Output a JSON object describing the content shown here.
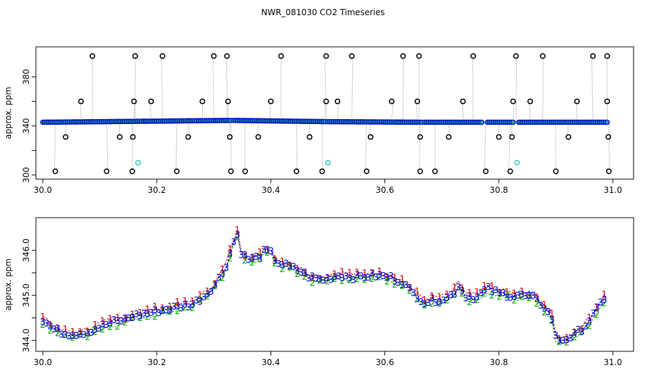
{
  "title": "NWR_081030  CO2 Timeseries",
  "colors": {
    "stem": "#999999",
    "outlier": "#000000",
    "main_point": "#0000cc",
    "main_fill": "#22aa88",
    "cyan": "#33cccc",
    "series1": "#dd0000",
    "series2": "#00aa00",
    "series3": "#0000cc"
  },
  "chart_data": [
    {
      "type": "scatter",
      "name": "top-panel",
      "ylabel": "approx. ppm",
      "xlabel": "",
      "xlim": [
        30.0,
        31.0
      ],
      "ylim": [
        300,
        400
      ],
      "xticks": [
        "30.0",
        "30.2",
        "30.4",
        "30.6",
        "30.8",
        "31.0"
      ],
      "xtick_values": [
        30.0,
        30.2,
        30.4,
        30.6,
        30.8,
        31.0
      ],
      "yticks": [
        "300",
        "340",
        "380"
      ],
      "ytick_values": [
        300,
        340,
        380
      ],
      "ytick_extra": [
        320,
        360
      ],
      "baseline_segments": [
        {
          "x": [
            30.0,
            30.33
          ],
          "y": [
            343,
            344.5
          ]
        },
        {
          "x": [
            30.335,
            30.495
          ],
          "y": [
            344.5,
            343.5
          ]
        },
        {
          "x": [
            30.5,
            30.665
          ],
          "y": [
            343.5,
            343
          ]
        },
        {
          "x": [
            30.67,
            30.77
          ],
          "y": [
            343,
            343
          ]
        },
        {
          "x": [
            30.78,
            30.825
          ],
          "y": [
            343,
            343
          ]
        },
        {
          "x": [
            30.835,
            30.99
          ],
          "y": [
            343,
            343
          ]
        }
      ],
      "outliers_high": [
        30.087,
        30.162,
        30.21,
        30.3,
        30.323,
        30.418,
        30.497,
        30.542,
        30.632,
        30.66,
        30.755,
        30.83,
        30.877,
        30.965,
        30.99
      ],
      "outliers_mid": [
        30.067,
        30.16,
        30.19,
        30.28,
        30.325,
        30.4,
        30.497,
        30.517,
        30.612,
        30.657,
        30.737,
        30.825,
        30.855,
        30.937,
        30.99
      ],
      "outliers_low": [
        30.04,
        30.135,
        30.158,
        30.255,
        30.328,
        30.378,
        30.468,
        30.575,
        30.662,
        30.712,
        30.8,
        30.823,
        30.922,
        30.992
      ],
      "outliers_bottom": [
        30.022,
        30.112,
        30.157,
        30.235,
        30.33,
        30.355,
        30.445,
        30.49,
        30.568,
        30.662,
        30.688,
        30.777,
        30.82,
        30.9,
        30.993
      ],
      "outlier_levels": {
        "high": 397,
        "mid": 360,
        "low": 331,
        "bottom": 303
      },
      "cyan_points": [
        {
          "x": 30.167,
          "y": 310
        },
        {
          "x": 30.5,
          "y": 310
        },
        {
          "x": 30.832,
          "y": 310
        }
      ]
    },
    {
      "type": "line",
      "name": "bottom-panel",
      "ylabel": "approx. ppm",
      "xlabel": "",
      "xlim": [
        30.0,
        31.0
      ],
      "ylim": [
        343.85,
        346.6
      ],
      "xticks": [
        "30.0",
        "30.2",
        "30.4",
        "30.6",
        "30.8",
        "31.0"
      ],
      "xtick_values": [
        30.0,
        30.2,
        30.4,
        30.6,
        30.8,
        31.0
      ],
      "yticks": [
        "344.0",
        "345.0",
        "346.0"
      ],
      "ytick_values": [
        344.0,
        345.0,
        346.0
      ],
      "ytick_extra": [
        344.5,
        345.5
      ],
      "series": [
        {
          "name": "1",
          "symbol": "1"
        },
        {
          "name": "2",
          "symbol": "2"
        },
        {
          "name": "3",
          "symbol": "3"
        }
      ],
      "profile": [
        [
          30.0,
          344.45
        ],
        [
          30.01,
          344.35
        ],
        [
          30.02,
          344.25
        ],
        [
          30.04,
          344.15
        ],
        [
          30.06,
          344.15
        ],
        [
          30.08,
          344.2
        ],
        [
          30.1,
          344.3
        ],
        [
          30.12,
          344.4
        ],
        [
          30.14,
          344.45
        ],
        [
          30.16,
          344.55
        ],
        [
          30.18,
          344.6
        ],
        [
          30.2,
          344.65
        ],
        [
          30.22,
          344.7
        ],
        [
          30.24,
          344.75
        ],
        [
          30.26,
          344.8
        ],
        [
          30.28,
          344.95
        ],
        [
          30.3,
          345.2
        ],
        [
          30.32,
          345.6
        ],
        [
          30.335,
          346.2
        ],
        [
          30.34,
          346.5
        ],
        [
          30.345,
          346.0
        ],
        [
          30.36,
          345.8
        ],
        [
          30.38,
          345.85
        ],
        [
          30.39,
          346.0
        ],
        [
          30.4,
          345.95
        ],
        [
          30.41,
          345.75
        ],
        [
          30.43,
          345.65
        ],
        [
          30.45,
          345.55
        ],
        [
          30.47,
          345.4
        ],
        [
          30.49,
          345.35
        ],
        [
          30.52,
          345.45
        ],
        [
          30.55,
          345.4
        ],
        [
          30.58,
          345.45
        ],
        [
          30.61,
          345.4
        ],
        [
          30.63,
          345.3
        ],
        [
          30.65,
          345.05
        ],
        [
          30.67,
          344.85
        ],
        [
          30.69,
          344.9
        ],
        [
          30.71,
          344.95
        ],
        [
          30.725,
          345.1
        ],
        [
          30.73,
          345.25
        ],
        [
          30.74,
          345.0
        ],
        [
          30.76,
          344.95
        ],
        [
          30.78,
          345.15
        ],
        [
          30.8,
          345.05
        ],
        [
          30.82,
          345.0
        ],
        [
          30.84,
          345.0
        ],
        [
          30.86,
          344.95
        ],
        [
          30.88,
          344.75
        ],
        [
          30.895,
          344.45
        ],
        [
          30.9,
          344.05
        ],
        [
          30.91,
          344.0
        ],
        [
          30.93,
          344.1
        ],
        [
          30.95,
          344.3
        ],
        [
          30.97,
          344.65
        ],
        [
          30.985,
          344.95
        ]
      ]
    }
  ]
}
